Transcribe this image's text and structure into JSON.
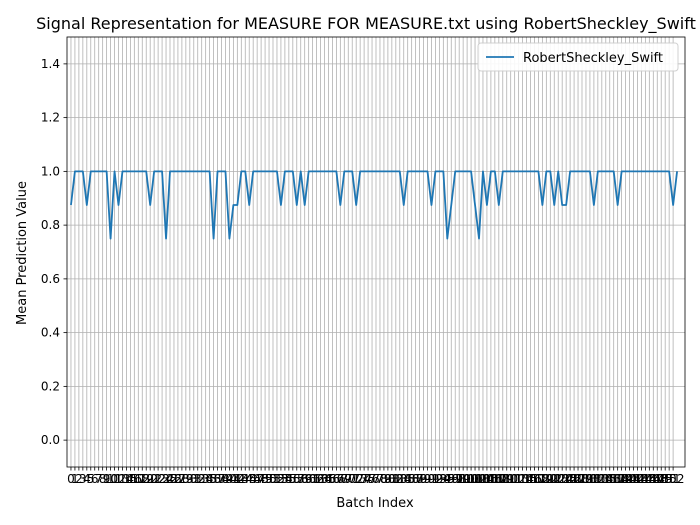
{
  "chart_data": {
    "type": "line",
    "title": "Signal Representation for MEASURE FOR MEASURE.txt using RobertSheckley_Swift",
    "xlabel": "Batch Index",
    "ylabel": "Mean Prediction Value",
    "xlim": [
      -1,
      155
    ],
    "ylim": [
      -0.1,
      1.5
    ],
    "yticks": [
      0.0,
      0.2,
      0.4,
      0.6,
      0.8,
      1.0,
      1.2,
      1.4
    ],
    "xtick_count": 153,
    "grid": true,
    "legend": {
      "position": "top-right"
    },
    "series": [
      {
        "name": "RobertSheckley_Swift",
        "color": "#1f77b4",
        "values": [
          0.875,
          1,
          1,
          1,
          0.875,
          1,
          1,
          1,
          1,
          1,
          0.75,
          1,
          0.875,
          1,
          1,
          1,
          1,
          1,
          1,
          1,
          0.875,
          1,
          1,
          1,
          0.75,
          1,
          1,
          1,
          1,
          1,
          1,
          1,
          1,
          1,
          1,
          1,
          0.75,
          1,
          1,
          1,
          0.75,
          0.875,
          0.875,
          1,
          1,
          0.875,
          1,
          1,
          1,
          1,
          1,
          1,
          1,
          0.875,
          1,
          1,
          1,
          0.875,
          1,
          0.875,
          1,
          1,
          1,
          1,
          1,
          1,
          1,
          1,
          0.875,
          1,
          1,
          1,
          0.875,
          1,
          1,
          1,
          1,
          1,
          1,
          1,
          1,
          1,
          1,
          1,
          0.875,
          1,
          1,
          1,
          1,
          1,
          1,
          0.875,
          1,
          1,
          1,
          0.75,
          0.875,
          1,
          1,
          1,
          1,
          1,
          0.875,
          0.75,
          1,
          0.875,
          1,
          1,
          0.875,
          1,
          1,
          1,
          1,
          1,
          1,
          1,
          1,
          1,
          1,
          0.875,
          1,
          1,
          0.875,
          1,
          0.875,
          0.875,
          1,
          1,
          1,
          1,
          1,
          1,
          0.875,
          1,
          1,
          1,
          1,
          1,
          0.875,
          1,
          1,
          1,
          1,
          1,
          1,
          1,
          1,
          1,
          1,
          1,
          1,
          1,
          0.875,
          1
        ]
      }
    ]
  }
}
